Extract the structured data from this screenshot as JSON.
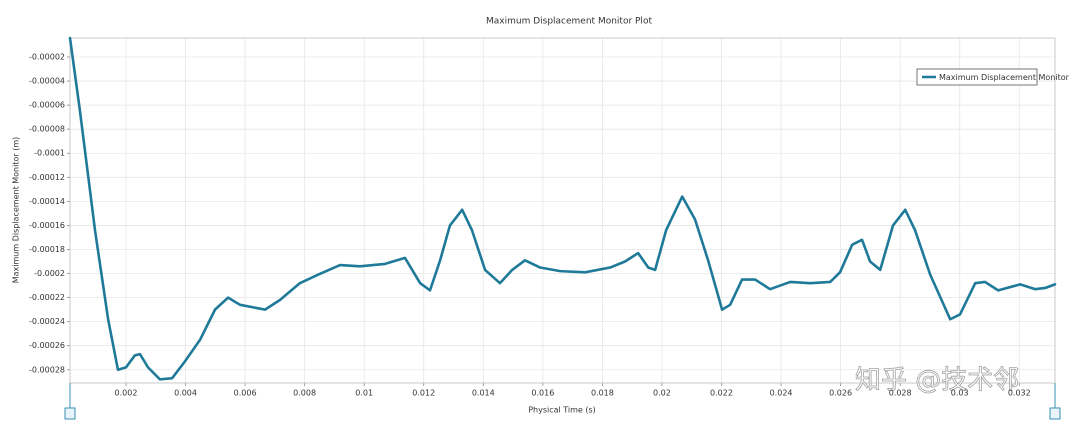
{
  "chart_data": {
    "type": "line",
    "title": "Maximum Displacement Monitor Plot",
    "x_label": "Physical Time (s)",
    "y_label": "Maximum Displacement Monitor (m)",
    "annotation": "知乎 @技术邻",
    "grid": true,
    "legend": "upper right",
    "xlim": [
      0.00012,
      0.0332
    ],
    "ylim": [
      -0.000291,
      -4.2e-06
    ],
    "xticks": [
      0.002,
      0.004,
      0.006,
      0.008,
      0.01,
      0.012,
      0.014,
      0.016,
      0.018,
      0.02,
      0.022,
      0.024,
      0.026,
      0.028,
      0.03,
      0.032
    ],
    "yticks": [
      -2e-05,
      -4e-05,
      -6e-05,
      -8e-05,
      -0.0001,
      -0.00012,
      -0.00014,
      -0.00016,
      -0.00018,
      -0.0002,
      -0.00022,
      -0.00024,
      -0.00026,
      -0.00028
    ],
    "x": [
      0.00012,
      0.00045,
      0.00096,
      0.0014,
      0.00173,
      0.002,
      0.0023,
      0.00247,
      0.00274,
      0.00314,
      0.00355,
      0.00398,
      0.00449,
      0.00499,
      0.00543,
      0.00583,
      0.00667,
      0.00717,
      0.00784,
      0.00845,
      0.00919,
      0.00986,
      0.0107,
      0.01137,
      0.01188,
      0.01221,
      0.01255,
      0.01288,
      0.01329,
      0.01362,
      0.01406,
      0.01456,
      0.01497,
      0.0154,
      0.01591,
      0.01658,
      0.01742,
      0.01826,
      0.01876,
      0.0192,
      0.01954,
      0.01977,
      0.02014,
      0.02068,
      0.02111,
      0.02155,
      0.02202,
      0.02229,
      0.02269,
      0.02313,
      0.02363,
      0.02431,
      0.02498,
      0.02565,
      0.02598,
      0.02639,
      0.02672,
      0.02699,
      0.02733,
      0.02776,
      0.02817,
      0.0285,
      0.02901,
      0.02968,
      0.03001,
      0.03052,
      0.03085,
      0.03129,
      0.03203,
      0.03253,
      0.03287,
      0.0332
    ],
    "series": [
      {
        "name": "Maximum Displacement Monitor",
        "color": "#1f7a99",
        "values": [
          -4.2e-06,
          -6.4e-05,
          -0.000164,
          -0.000238,
          -0.00028,
          -0.000278,
          -0.000268,
          -0.000267,
          -0.000278,
          -0.000288,
          -0.000287,
          -0.000273,
          -0.000255,
          -0.00023,
          -0.00022,
          -0.000226,
          -0.00023,
          -0.000222,
          -0.000208,
          -0.000201,
          -0.000193,
          -0.000194,
          -0.000192,
          -0.000187,
          -0.000208,
          -0.000214,
          -0.000189,
          -0.00016,
          -0.000147,
          -0.000164,
          -0.000197,
          -0.000208,
          -0.000197,
          -0.000189,
          -0.000195,
          -0.000198,
          -0.000199,
          -0.000195,
          -0.00019,
          -0.000183,
          -0.000195,
          -0.000197,
          -0.000164,
          -0.000136,
          -0.000155,
          -0.000189,
          -0.00023,
          -0.000226,
          -0.000205,
          -0.000205,
          -0.000213,
          -0.000207,
          -0.000208,
          -0.000207,
          -0.000199,
          -0.000176,
          -0.000172,
          -0.00019,
          -0.000197,
          -0.00016,
          -0.000147,
          -0.000164,
          -0.000201,
          -0.000238,
          -0.000234,
          -0.000208,
          -0.000207,
          -0.000214,
          -0.000209,
          -0.000213,
          -0.000212,
          -0.000209
        ]
      }
    ]
  }
}
